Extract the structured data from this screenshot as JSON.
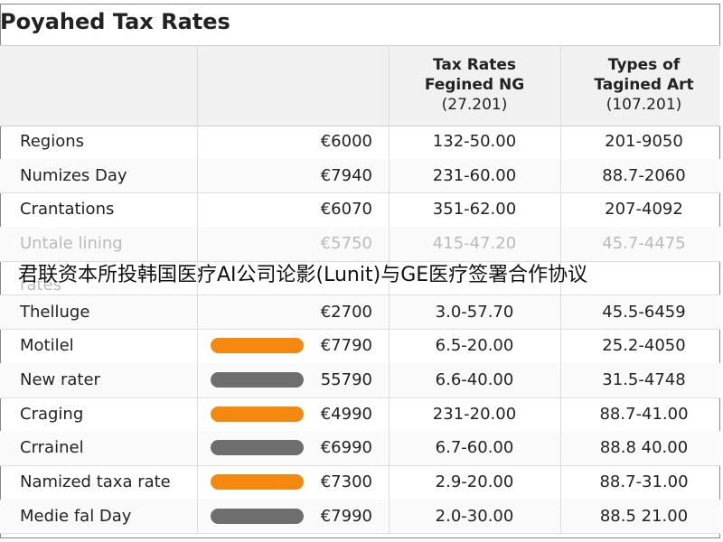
{
  "title": "Poyahed Tax Rates",
  "table": {
    "header": [
      [
        "Tax Rates",
        "Fegined NG",
        "(27.201)"
      ],
      [
        "Types of",
        "Tagined Art",
        "(107.201)"
      ]
    ],
    "rows": [
      [
        "Regions",
        "€6000",
        "132-50.00",
        "201-9050"
      ],
      [
        "Numizes Day",
        "€7940",
        "231-60.00",
        "88.7-2060"
      ],
      [
        "Crantations",
        "€6070",
        "351-62.00",
        "207-4092"
      ],
      [
        "Untale lining",
        "€5750",
        "415-47.20",
        "45.7-4475"
      ],
      [
        "rates"
      ],
      [
        "Thelluge",
        "€2700",
        "3.0-57.70",
        "45.5-6459"
      ],
      [
        "Motilel",
        "€7790",
        "6.5-20.00",
        "25.2-4050"
      ],
      [
        "New rater",
        "55790",
        "6.6-40.00",
        "31.5-4748"
      ],
      [
        "Craging",
        "€4990",
        "231-20.00",
        "88.7-41.00"
      ],
      [
        "Crrainel",
        "€6990",
        "6.7-60.00",
        "88.8 40.00"
      ],
      [
        "Namized taxa rate",
        "€7300",
        "2.9-20.00",
        "88.7-31.00"
      ],
      [
        "Medie fal Day",
        "€7990",
        "2.0-30.00",
        "88.5 21.00"
      ]
    ]
  },
  "overlay": "君联资本所投韩国医疗AI公司论影(Lunit)与GE医疗签署合作协议"
}
